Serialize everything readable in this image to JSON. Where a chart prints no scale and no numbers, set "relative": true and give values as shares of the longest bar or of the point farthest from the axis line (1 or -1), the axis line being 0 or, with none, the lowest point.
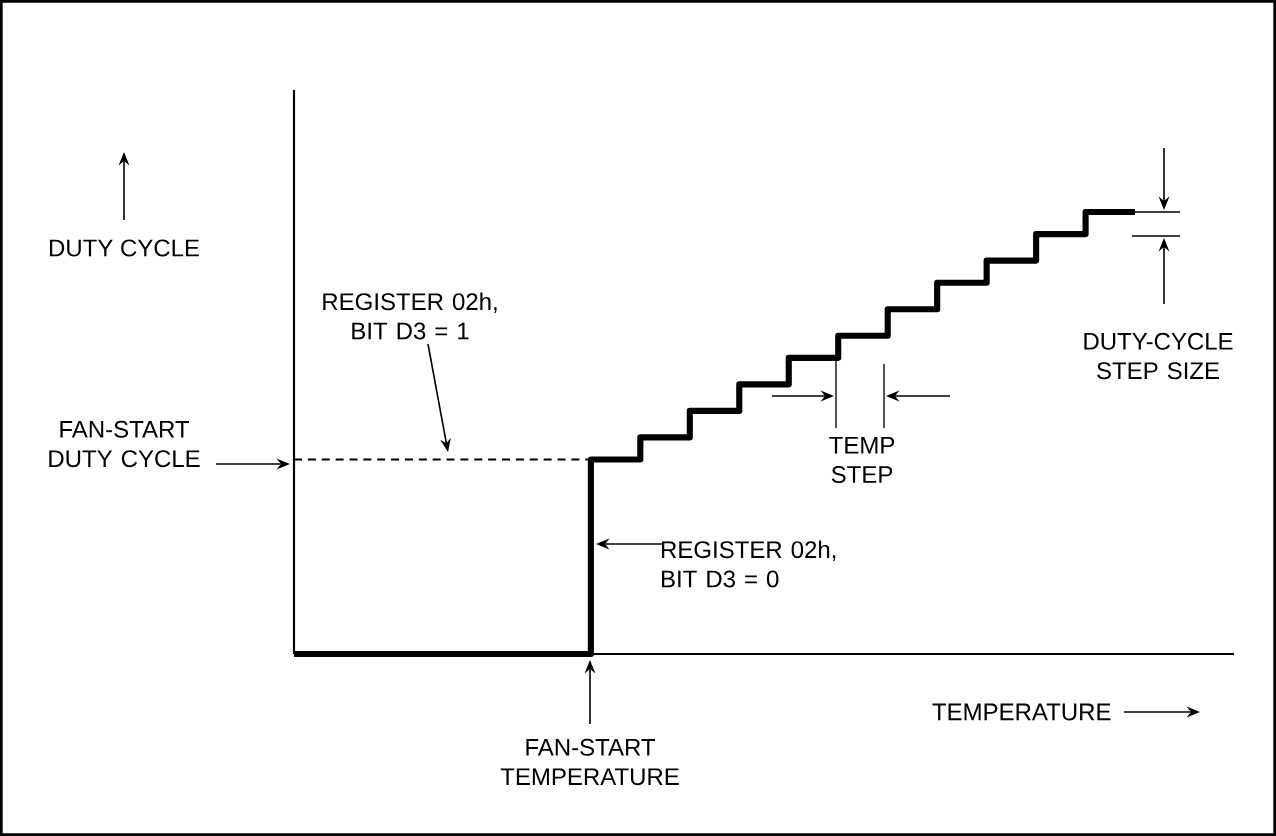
{
  "chart_data": {
    "type": "step",
    "relative": true,
    "xlabel": "TEMPERATURE",
    "ylabel": "DUTY CYCLE",
    "categories": [
      null,
      null,
      null,
      null,
      null,
      null,
      null,
      null,
      null,
      null,
      null,
      null,
      null,
      null,
      null,
      null,
      null,
      null,
      null,
      null
    ],
    "series": [
      {
        "color": "#000000",
        "values": [
          0,
          0,
          0,
          0,
          0,
          0,
          0.44,
          0.49,
          0.55,
          0.61,
          0.67,
          0.72,
          0.78,
          0.84,
          0.89,
          0.95,
          1,
          1,
          null,
          null
        ]
      },
      {
        "type": "line",
        "color": "#000000",
        "line_style": "dashed",
        "values": [
          0.44,
          0.44,
          0.44,
          0.44,
          0.44,
          0.44,
          0.44,
          null,
          null,
          null,
          null,
          null,
          null,
          null,
          null,
          null,
          null,
          null,
          null,
          null
        ]
      }
    ],
    "annotations": [
      "FAN-START DUTY CYCLE",
      "REGISTER 02h, BIT D3 = 1",
      "REGISTER 02h, BIT D3 = 0",
      "TEMP STEP",
      "DUTY-CYCLE STEP SIZE",
      "FAN-START TEMPERATURE"
    ],
    "marker": "none"
  }
}
